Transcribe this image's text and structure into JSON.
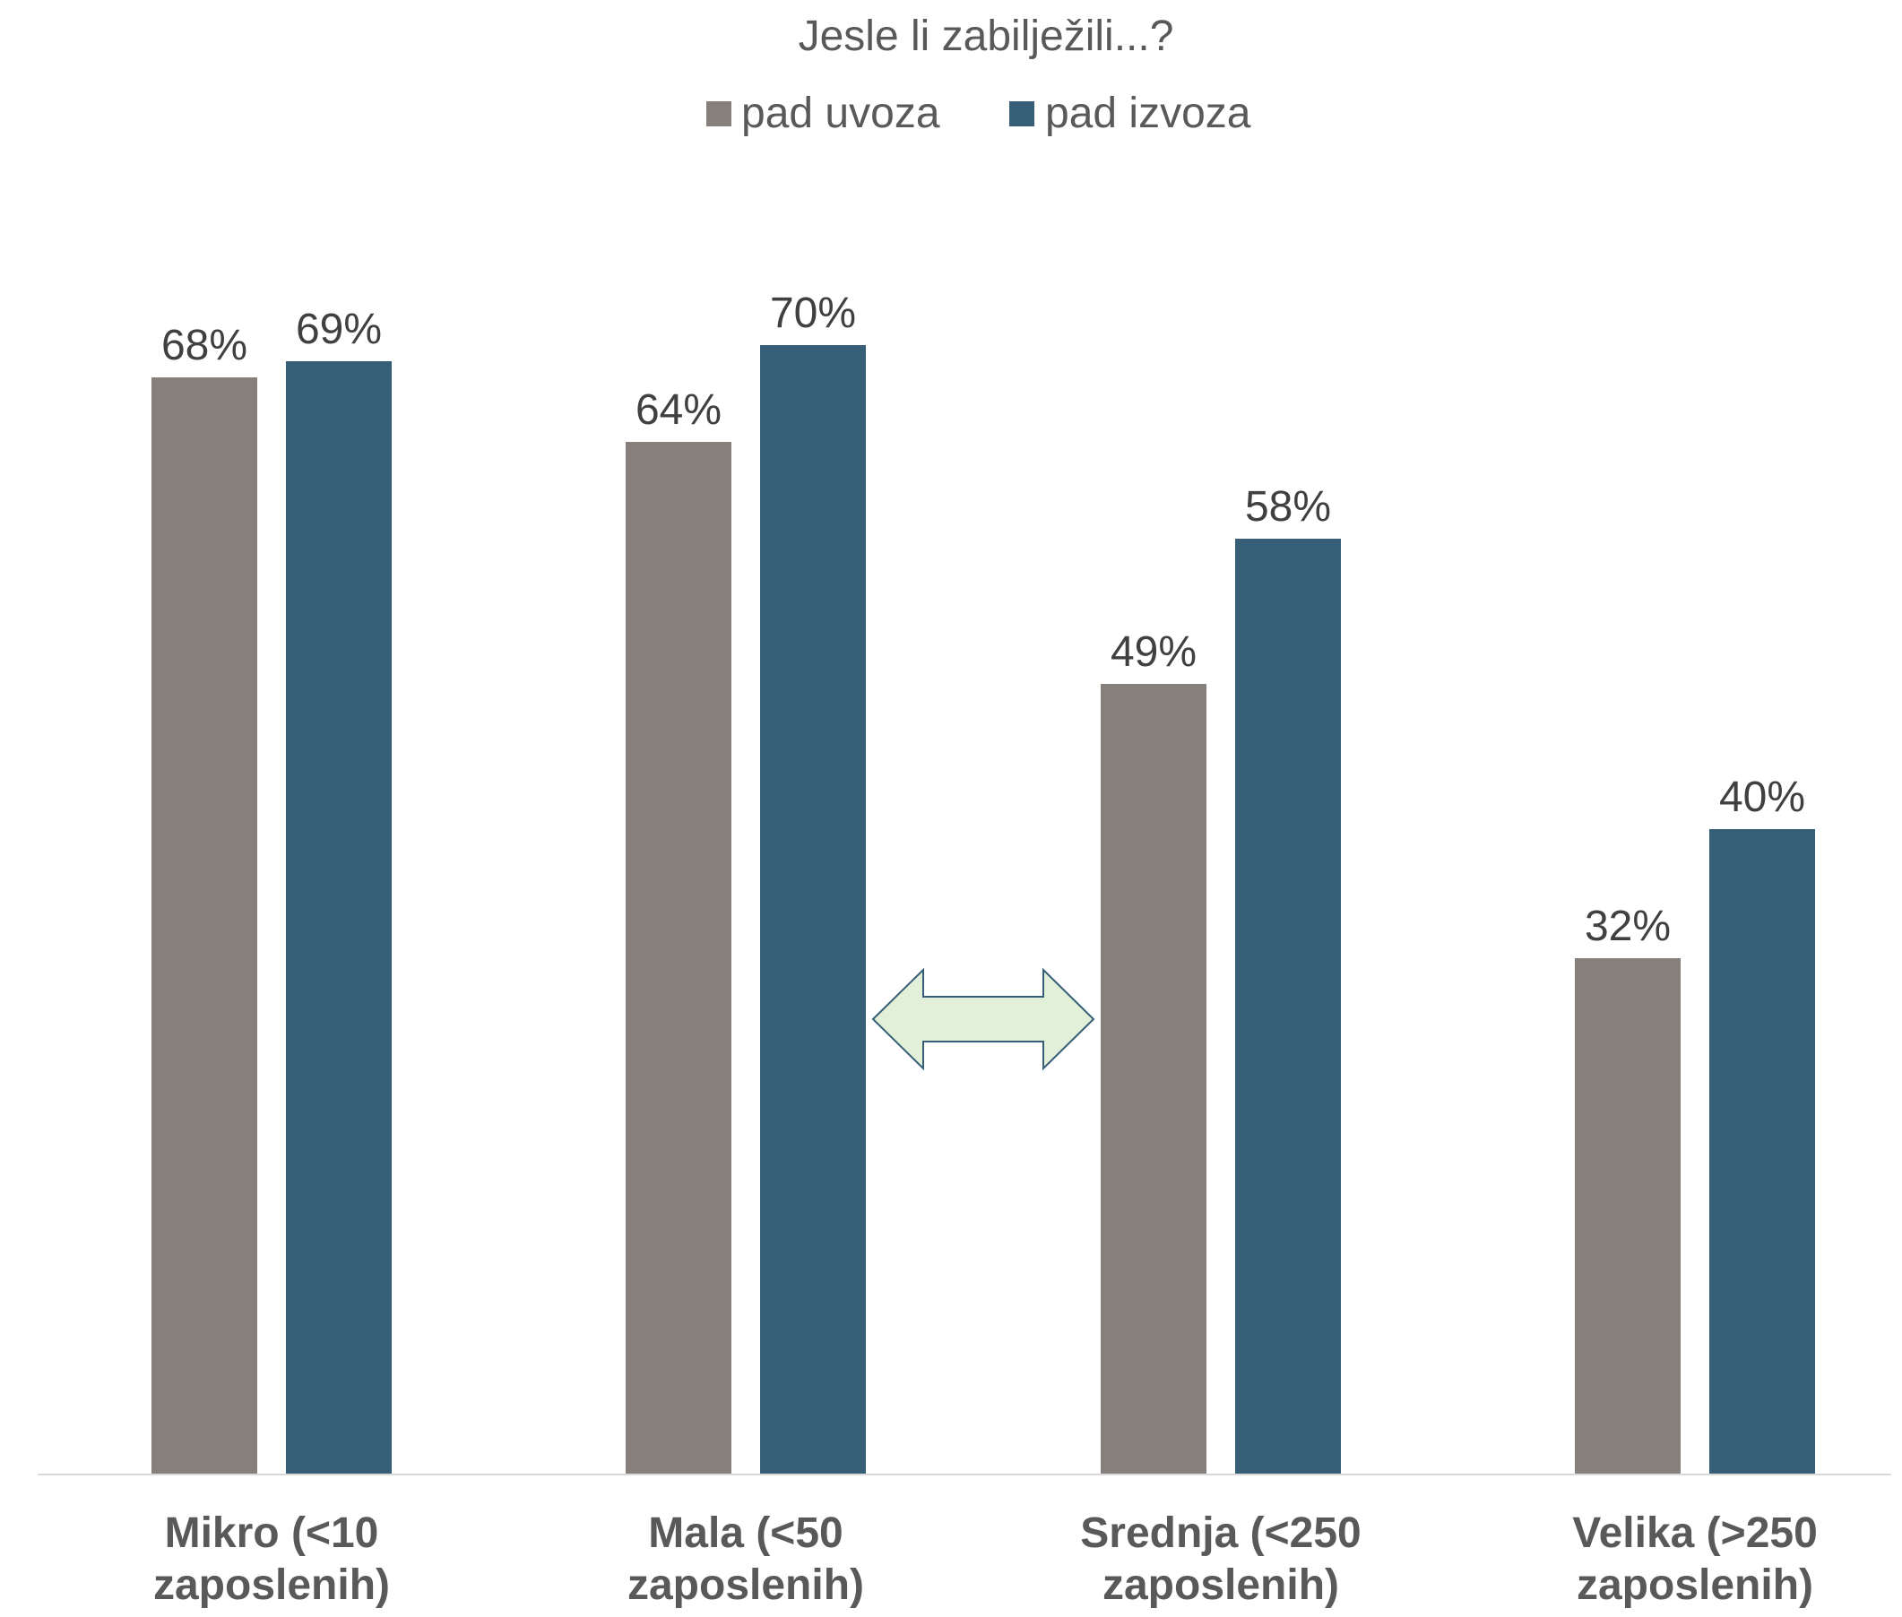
{
  "chart_data": {
    "type": "bar",
    "title": "Jesle li zabilježili...?",
    "xlabel": "",
    "ylabel": "",
    "categories": [
      [
        "Mikro (<10",
        "zaposlenih)"
      ],
      [
        "Mala (<50",
        "zaposlenih)"
      ],
      [
        "Srednja (<250",
        "zaposlenih)"
      ],
      [
        "Velika (>250",
        "zaposlenih)"
      ]
    ],
    "series": [
      {
        "name": "pad uvoza",
        "color": "#877f7c",
        "values": [
          68,
          64,
          49,
          32
        ],
        "labels": [
          "68%",
          "64%",
          "49%",
          "32%"
        ]
      },
      {
        "name": "pad izvoza",
        "color": "#365e77",
        "values": [
          69,
          70,
          58,
          40
        ],
        "labels": [
          "69%",
          "70%",
          "58%",
          "40%"
        ]
      }
    ],
    "ylim": [
      0,
      70
    ],
    "grid": false,
    "legend_position": "top-center",
    "annotation": "double-headed-arrow between Mala and Srednja"
  },
  "colors": {
    "text": "#595959",
    "label_text": "#404040",
    "axis": "#d9d9d9",
    "arrow_fill": "#e2efd9",
    "arrow_stroke": "#365e77"
  }
}
